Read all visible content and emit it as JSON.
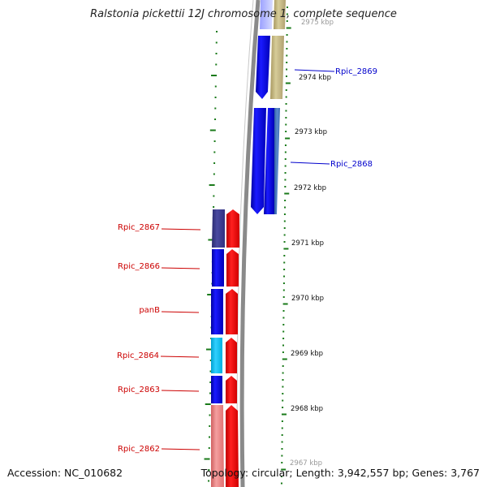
{
  "title": "Ralstonia pickettii 12J chromosome 1, complete sequence",
  "accession": "Accession: NC_010682",
  "topology": "Topology: circular; Length: 3,942,557 bp; Genes: 3,767",
  "scale_labels": [
    "2975 kbp",
    "2974 kbp",
    "2973 kbp",
    "2972 kbp",
    "2971 kbp",
    "2970 kbp",
    "2969 kbp",
    "2968 kbp",
    "2967 kbp"
  ],
  "genes_forward": [
    {
      "name": "Rpic_2869",
      "color": "#0000cc"
    },
    {
      "name": "Rpic_2868",
      "color": "#0000cc"
    }
  ],
  "genes_reverse": [
    {
      "name": "Rpic_2867",
      "color": "#cc0000"
    },
    {
      "name": "Rpic_2866",
      "color": "#cc0000"
    },
    {
      "name": "panB",
      "color": "#cc0000"
    },
    {
      "name": "Rpic_2864",
      "color": "#cc0000"
    },
    {
      "name": "Rpic_2863",
      "color": "#cc0000"
    },
    {
      "name": "Rpic_2862",
      "color": "#cc0000"
    }
  ],
  "colors": {
    "backbone": "#8a8a8a",
    "tick": "#1a7a1a",
    "forward_label": "#0000cc",
    "reverse_label": "#cc0000"
  }
}
